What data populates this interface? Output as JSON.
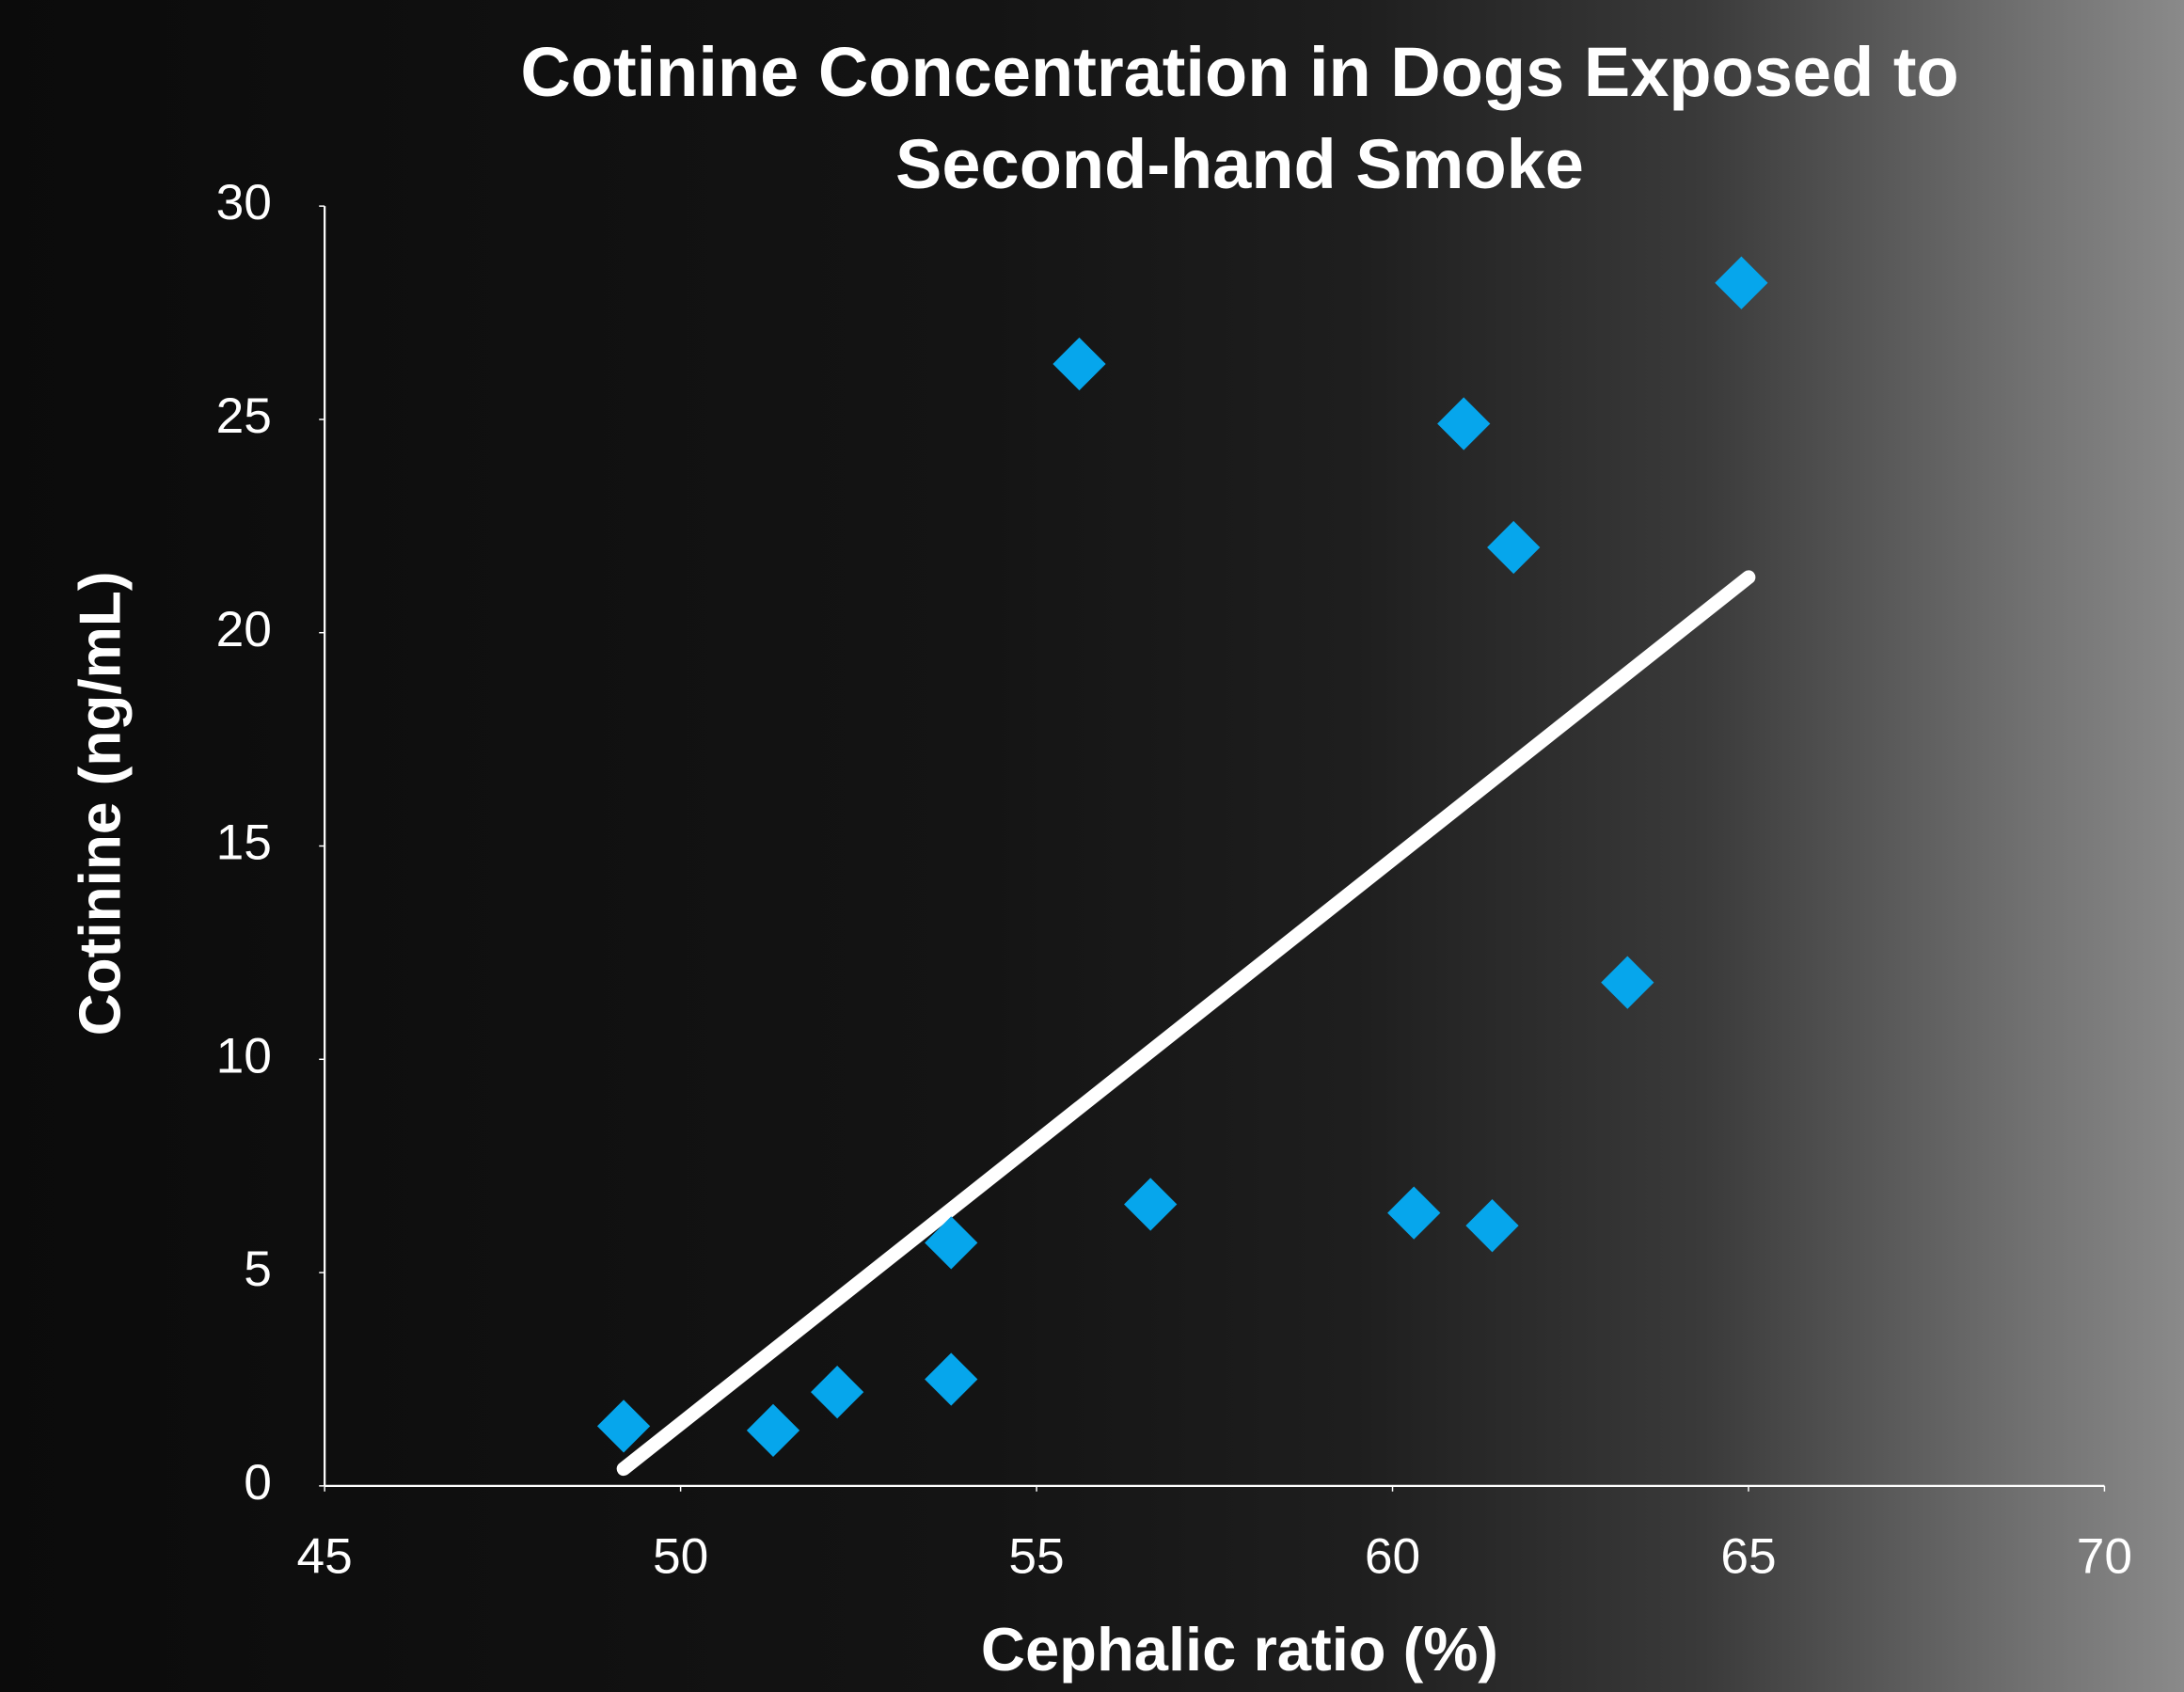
{
  "chart_data": {
    "type": "scatter",
    "title": "Cotinine Concentration in Dogs Exposed to Second-hand Smoke",
    "xlabel": "Cephalic ratio (%)",
    "ylabel": "Cotinine (ng/mL)",
    "x": [
      49.2,
      51.3,
      52.2,
      53.8,
      53.8,
      55.6,
      56.6,
      60.3,
      61.4,
      61.0,
      61.7,
      63.3,
      64.9
    ],
    "values": [
      1.4,
      1.3,
      2.2,
      2.5,
      5.7,
      26.3,
      6.6,
      6.4,
      6.1,
      24.9,
      22.0,
      11.8,
      28.2
    ],
    "color": "#06a6ec",
    "trendline": {
      "x": [
        49.2,
        65.0
      ],
      "values": [
        0.4,
        21.3
      ],
      "color": "#ffffff"
    },
    "xlim": [
      45,
      70
    ],
    "xticks": [
      45,
      50,
      55,
      60,
      65,
      70
    ],
    "ylim": [
      0,
      30
    ],
    "yticks": [
      0,
      5,
      10,
      15,
      20,
      25,
      30
    ]
  }
}
